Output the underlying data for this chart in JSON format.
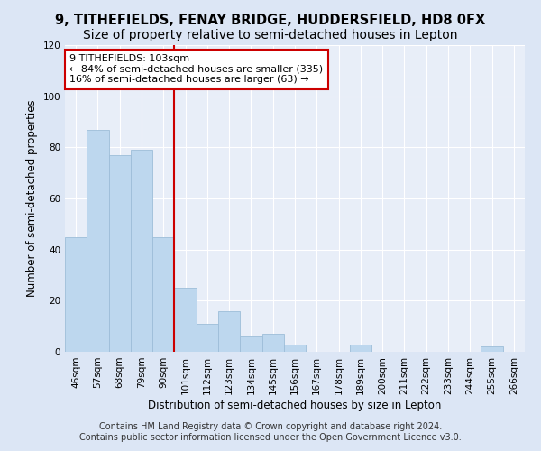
{
  "title": "9, TITHEFIELDS, FENAY BRIDGE, HUDDERSFIELD, HD8 0FX",
  "subtitle": "Size of property relative to semi-detached houses in Lepton",
  "xlabel": "Distribution of semi-detached houses by size in Lepton",
  "ylabel": "Number of semi-detached properties",
  "categories": [
    "46sqm",
    "57sqm",
    "68sqm",
    "79sqm",
    "90sqm",
    "101sqm",
    "112sqm",
    "123sqm",
    "134sqm",
    "145sqm",
    "156sqm",
    "167sqm",
    "178sqm",
    "189sqm",
    "200sqm",
    "211sqm",
    "222sqm",
    "233sqm",
    "244sqm",
    "255sqm",
    "266sqm"
  ],
  "values": [
    45,
    87,
    77,
    79,
    45,
    25,
    11,
    16,
    6,
    7,
    3,
    0,
    0,
    3,
    0,
    0,
    0,
    0,
    0,
    2,
    0
  ],
  "bar_color": "#bdd7ee",
  "bar_edge_color": "#9dbdd8",
  "vline_color": "#cc0000",
  "annotation_text": "9 TITHEFIELDS: 103sqm\n← 84% of semi-detached houses are smaller (335)\n16% of semi-detached houses are larger (63) →",
  "annotation_box_color": "#ffffff",
  "annotation_box_edge": "#cc0000",
  "ylim": [
    0,
    120
  ],
  "yticks": [
    0,
    20,
    40,
    60,
    80,
    100,
    120
  ],
  "footer_line1": "Contains HM Land Registry data © Crown copyright and database right 2024.",
  "footer_line2": "Contains public sector information licensed under the Open Government Licence v3.0.",
  "bg_color": "#dce6f5",
  "plot_bg_color": "#e8eef8",
  "grid_color": "#ffffff",
  "title_fontsize": 10.5,
  "label_fontsize": 8.5,
  "tick_fontsize": 7.5,
  "footer_fontsize": 7,
  "annot_fontsize": 8
}
